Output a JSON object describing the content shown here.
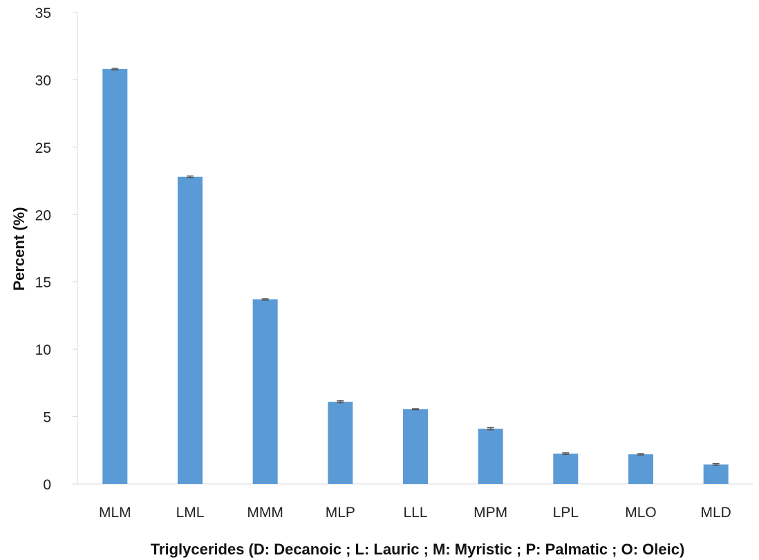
{
  "chart_data": {
    "type": "bar",
    "title": "",
    "xlabel": "Triglycerides (D: Decanoic ; L: Lauric ; M: Myristic ; P: Palmatic ; O: Oleic)",
    "ylabel": "Percent (%)",
    "ylim": [
      0,
      35
    ],
    "yticks": [
      0,
      5,
      10,
      15,
      20,
      25,
      30,
      35
    ],
    "grid": false,
    "legend": "none",
    "bar_color": "#5b9bd5",
    "error_color": "#555555",
    "categories": [
      "MLM",
      "LML",
      "MMM",
      "MLP",
      "LLL",
      "MPM",
      "LPL",
      "MLO",
      "MLD"
    ],
    "values": [
      30.8,
      22.8,
      13.7,
      6.1,
      5.55,
      4.1,
      2.25,
      2.2,
      1.45
    ],
    "errors": [
      0.06,
      0.06,
      0.05,
      0.07,
      0.04,
      0.08,
      0.06,
      0.05,
      0.06
    ]
  }
}
